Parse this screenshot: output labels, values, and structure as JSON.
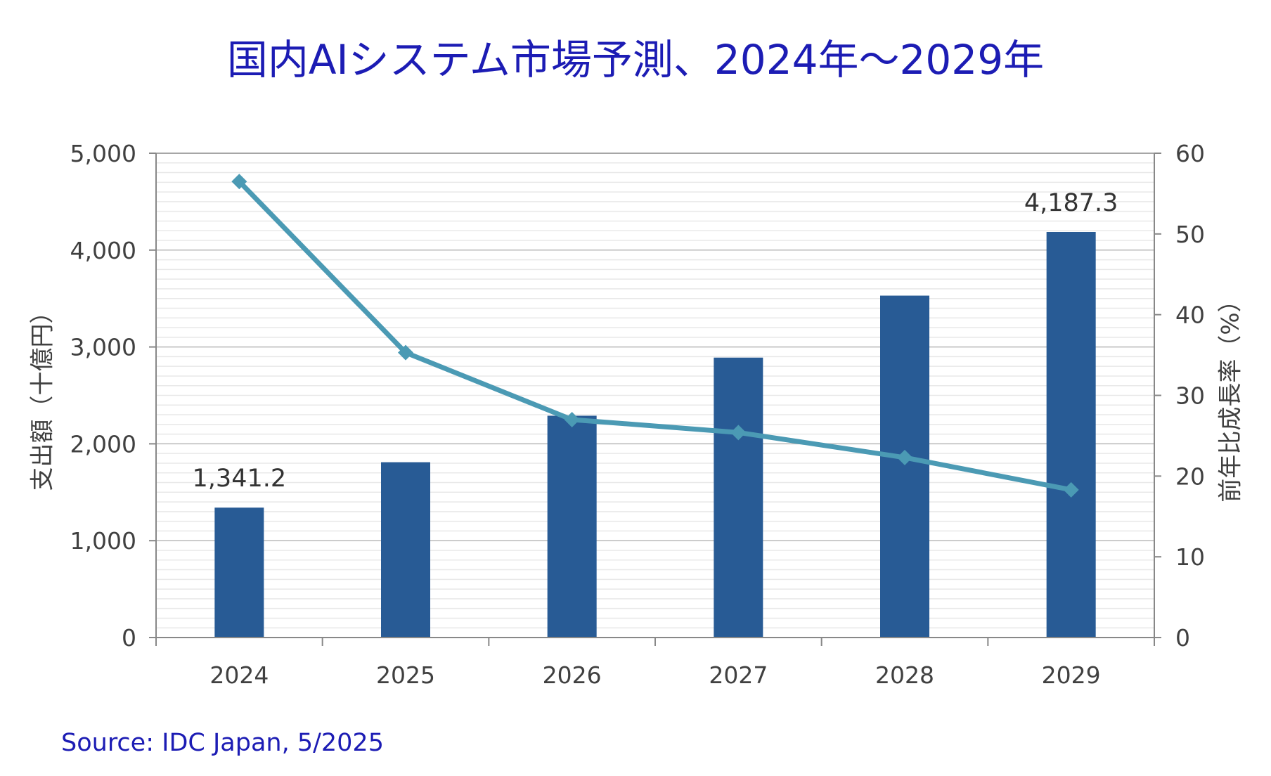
{
  "chart_data": {
    "type": "bar",
    "title": "国内AIシステム市場予測、2024年～2029年",
    "source": "Source: IDC Japan, 5/2025",
    "categories": [
      "2024",
      "2025",
      "2026",
      "2027",
      "2028",
      "2029"
    ],
    "series": [
      {
        "type": "bar",
        "axis": "left",
        "values": [
          1341.2,
          1810,
          2290,
          2890,
          3530,
          4187.3
        ],
        "color": "#285b95"
      },
      {
        "type": "line",
        "axis": "right",
        "marker": "diamond",
        "values": [
          56.5,
          35.3,
          27.0,
          25.4,
          22.3,
          18.3
        ],
        "color": "#4b9ab4"
      }
    ],
    "ylabel": "支出額（十億円）",
    "y2label": "前年比成長率（%）",
    "ylim": [
      0,
      5000
    ],
    "y2lim": [
      0,
      60
    ],
    "yticks": [
      "0",
      "1,000",
      "2,000",
      "3,000",
      "4,000",
      "5,000"
    ],
    "y2ticks": [
      "0",
      "10",
      "20",
      "30",
      "40",
      "50",
      "60"
    ],
    "data_labels": [
      {
        "category": "2024",
        "text": "1,341.2"
      },
      {
        "category": "2029",
        "text": "4,187.3"
      }
    ],
    "grid": true,
    "legend": "none"
  }
}
